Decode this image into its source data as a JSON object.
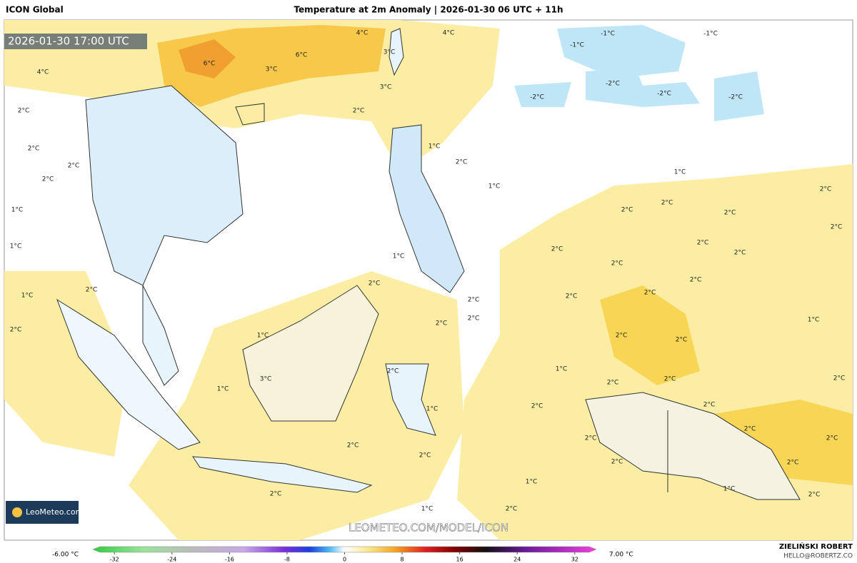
{
  "header": {
    "model": "ICON Global",
    "title": "Temperature at 2m Anomaly | 2026-01-30 06 UTC + 11h"
  },
  "map": {
    "timestamp": "2026-01-30 17:00 UTC",
    "watermark": "LEOMETEO.COM/MODEL/ICON",
    "logo": "LeoMeteo.com",
    "contour_labels": [
      "4°C",
      "4°C",
      "-1°C",
      "-1°C",
      "-1°C",
      "3°C",
      "6°C",
      "6°C",
      "3°C",
      "4°C",
      "3°C",
      "-2°C",
      "-2°C",
      "-2°C",
      "-2°C",
      "2°C",
      "2°C",
      "2°C",
      "1°C",
      "2°C",
      "2°C",
      "1°C",
      "2°C",
      "1°C",
      "2°C",
      "2°C",
      "2°C",
      "1°C",
      "2°C",
      "2°C",
      "2°C",
      "2°C",
      "1°C",
      "2°C",
      "1°C",
      "2°C",
      "2°C",
      "1°C",
      "2°C",
      "2°C",
      "2°C",
      "2°C",
      "2°C",
      "2°C",
      "1°C",
      "2°C",
      "2°C",
      "1°C",
      "2°C",
      "2°C",
      "1°C",
      "3°C",
      "2°C",
      "2°C",
      "2°C",
      "2°C",
      "1°C",
      "1°C",
      "2°C",
      "2°C",
      "2°C",
      "2°C",
      "2°C",
      "2°C",
      "2°C",
      "2°C",
      "2°C",
      "1°C",
      "1°C",
      "2°C",
      "2°C",
      "1°C",
      "2°C"
    ]
  },
  "colorbar": {
    "min_label": "-6.00 °C",
    "max_label": "7.00 °C",
    "lim": [
      -35,
      35
    ],
    "ticks": [
      -32,
      -24,
      -16,
      -8,
      0,
      8,
      16,
      24,
      32
    ]
  },
  "credits": {
    "author": "ZIELIŃSKI ROBERT",
    "email": "HELLO@ROBERTZ.CO"
  }
}
